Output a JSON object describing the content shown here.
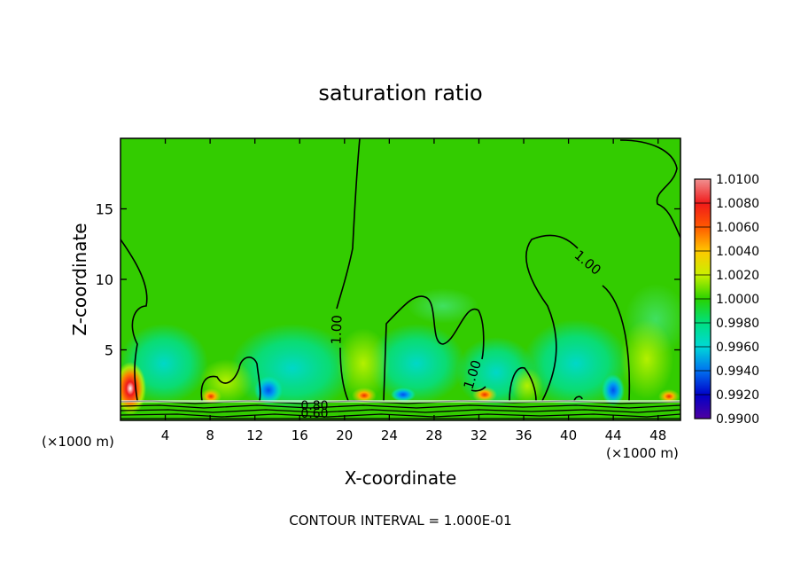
{
  "chart_data": {
    "type": "heatmap",
    "title": "saturation ratio",
    "xlabel": "X-coordinate",
    "ylabel": "Z-coordinate",
    "x_unit_left": "(×1000 m)",
    "x_unit_right": "(×1000 m)",
    "xlim": [
      0,
      50
    ],
    "ylim": [
      0,
      20
    ],
    "x_ticks": [
      4,
      8,
      12,
      16,
      20,
      24,
      28,
      32,
      36,
      40,
      44,
      48
    ],
    "y_ticks": [
      5,
      10,
      15
    ],
    "colorbar": {
      "labels": [
        "1.0100",
        "1.0080",
        "1.0060",
        "1.0040",
        "1.0020",
        "1.0000",
        "0.9980",
        "0.9960",
        "0.9940",
        "0.9920",
        "0.9900"
      ],
      "colors": [
        "#f09090",
        "#f01a1a",
        "#ff5a00",
        "#ffc800",
        "#c8f000",
        "#28d200",
        "#00e080",
        "#00d8d8",
        "#0070f0",
        "#0000c8",
        "#5000a0"
      ]
    },
    "field_base_color": "#33cc00",
    "contour_labels": [
      "1.00",
      "1.00",
      "1.00",
      "0.80",
      "0.60"
    ],
    "footer": "CONTOUR INTERVAL = 1.000E-01"
  }
}
